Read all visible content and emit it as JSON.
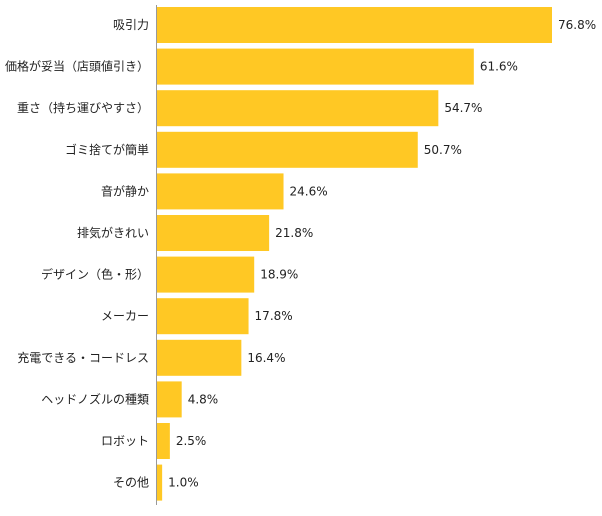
{
  "chart_data": {
    "type": "bar",
    "orientation": "horizontal",
    "categories": [
      "吸引力",
      "価格が妥当（店頭値引き）",
      "重さ（持ち運びやすさ）",
      "ゴミ捨てが簡単",
      "音が静か",
      "排気がきれい",
      "デザイン（色・形）",
      "メーカー",
      "充電できる・コードレス",
      "ヘッドノズルの種類",
      "ロボット",
      "その他"
    ],
    "values": [
      76.8,
      61.6,
      54.7,
      50.7,
      24.6,
      21.8,
      18.9,
      17.8,
      16.4,
      4.8,
      2.5,
      1.0
    ],
    "value_labels": [
      "76.8%",
      "61.6%",
      "54.7%",
      "50.7%",
      "24.6%",
      "21.8%",
      "18.9%",
      "17.8%",
      "16.4%",
      "4.8%",
      "2.5%",
      "1.0%"
    ],
    "xlim": [
      0,
      76.8
    ],
    "bar_color": "#FFC824",
    "axis_color": "#999999",
    "grid": false,
    "legend": "none"
  }
}
